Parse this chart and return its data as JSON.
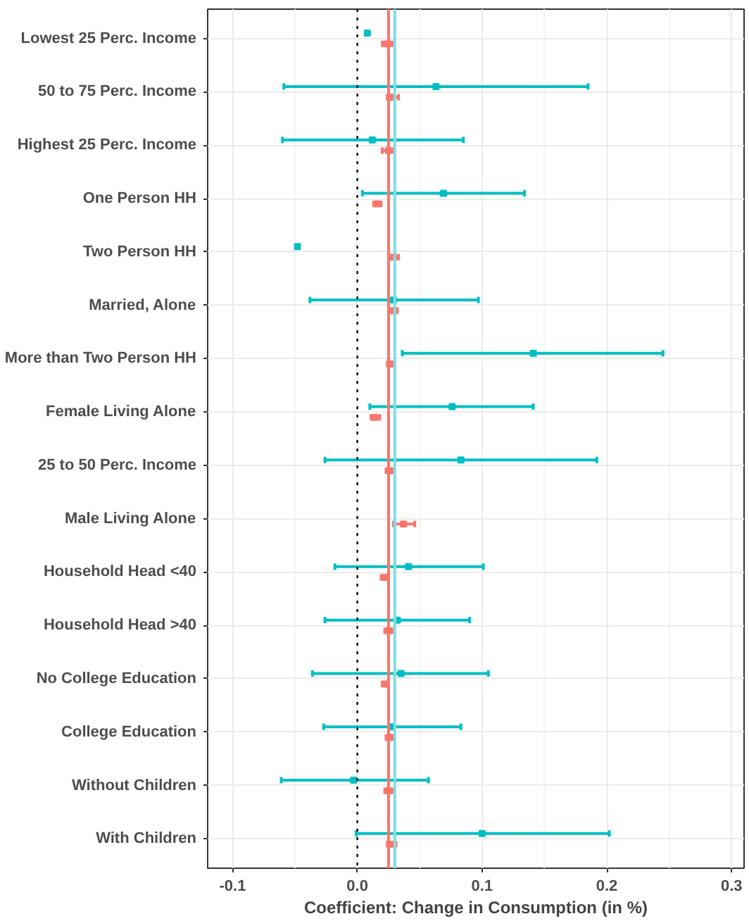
{
  "chart_data": {
    "type": "scatter",
    "orientation": "horizontal",
    "xlabel": "Coefficient: Change in Consumption (in %)",
    "categories": [
      "Lowest 25 Perc. Income",
      "50 to 75 Perc. Income",
      "Highest 25 Perc. Income",
      "One Person HH",
      "Two Person HH",
      "Married, Alone",
      "More than Two Person HH",
      "Female Living Alone",
      "25 to 50 Perc. Income",
      "Male Living Alone",
      "Household Head <40",
      "Household Head >40",
      "No College Education",
      "College Education",
      "Without Children",
      "With Children"
    ],
    "series": [
      {
        "color": "#00bfc4",
        "values": [
          0.008,
          0.063,
          0.012,
          0.069,
          -0.048,
          0.029,
          0.141,
          0.076,
          0.083,
          null,
          0.041,
          0.032,
          0.035,
          0.028,
          -0.003,
          0.1
        ],
        "errors": [
          null,
          [
            -0.059,
            0.185
          ],
          [
            -0.06,
            0.085
          ],
          [
            0.004,
            0.134
          ],
          null,
          [
            -0.038,
            0.097
          ],
          [
            0.036,
            0.245
          ],
          [
            0.01,
            0.141
          ],
          [
            -0.026,
            0.192
          ],
          null,
          [
            -0.018,
            0.101
          ],
          [
            -0.026,
            0.09
          ],
          [
            -0.036,
            0.105
          ],
          [
            -0.027,
            0.083
          ],
          [
            -0.061,
            0.057
          ],
          [
            -0.001,
            0.202
          ]
        ]
      },
      {
        "color": "#f8766d",
        "values": [
          0.024,
          0.028,
          0.025,
          0.016,
          0.029,
          0.029,
          0.027,
          0.014,
          0.026,
          0.037,
          0.022,
          0.025,
          0.022,
          0.026,
          0.025,
          0.027
        ],
        "errors": [
          [
            0.02,
            0.028
          ],
          [
            0.024,
            0.033
          ],
          [
            0.02,
            0.029
          ],
          [
            0.013,
            0.019
          ],
          [
            0.026,
            0.033
          ],
          [
            0.026,
            0.032
          ],
          [
            0.024,
            0.03
          ],
          [
            0.011,
            0.018
          ],
          [
            0.023,
            0.029
          ],
          [
            0.029,
            0.046
          ],
          [
            0.019,
            0.025
          ],
          [
            0.022,
            0.028
          ],
          [
            0.02,
            0.025
          ],
          [
            0.023,
            0.029
          ],
          [
            0.022,
            0.028
          ],
          [
            0.024,
            0.031
          ]
        ]
      }
    ],
    "ref_lines": [
      {
        "axis": "x",
        "value": 0,
        "color": "#000000",
        "line_style": "dotted"
      },
      {
        "axis": "x",
        "value": 0.025,
        "color": "#f8766d",
        "line_style": "solid"
      },
      {
        "axis": "x",
        "value": 0.03,
        "color": "#7fdfe1",
        "line_style": "solid"
      }
    ],
    "xlim": [
      -0.12,
      0.31
    ],
    "xticks": [
      -0.1,
      {
        "value": 0,
        "label": "0.0"
      },
      0.1,
      0.2,
      0.3
    ],
    "grid": true,
    "marker": "square"
  }
}
